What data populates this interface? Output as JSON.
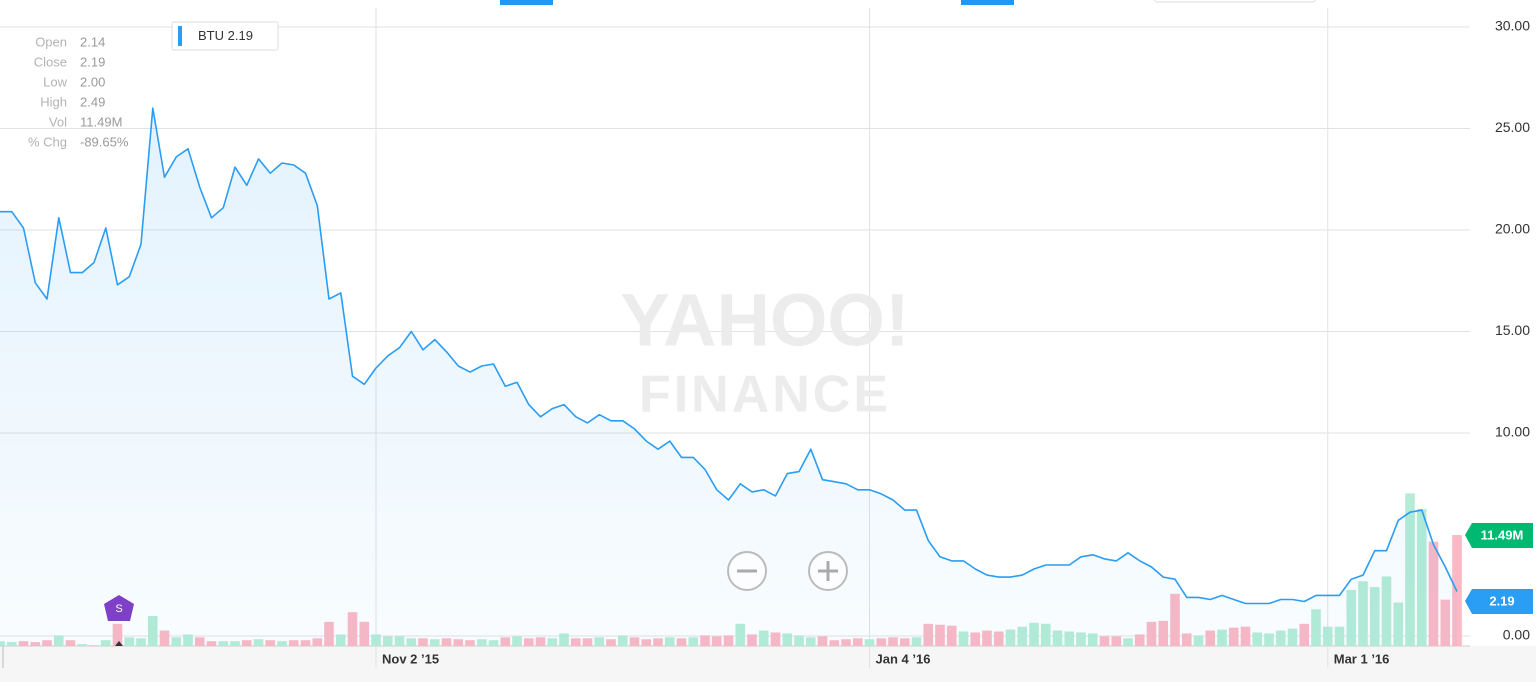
{
  "chart_data": {
    "type": "line",
    "categories": [
      null,
      null,
      null,
      null,
      null,
      null,
      null,
      null,
      null,
      null,
      null,
      null,
      null,
      null,
      null,
      null,
      null,
      null,
      null,
      null,
      null,
      null,
      null,
      null,
      null,
      null,
      null,
      null,
      null,
      null,
      null,
      null,
      "Nov 2 ’15",
      null,
      null,
      null,
      null,
      null,
      null,
      null,
      null,
      null,
      null,
      null,
      null,
      null,
      null,
      null,
      null,
      null,
      null,
      null,
      null,
      null,
      null,
      null,
      null,
      null,
      null,
      null,
      null,
      null,
      null,
      null,
      null,
      null,
      null,
      null,
      null,
      null,
      null,
      null,
      null,
      null,
      "Jan 4 ’16",
      null,
      null,
      null,
      null,
      null,
      null,
      null,
      null,
      null,
      null,
      null,
      null,
      null,
      null,
      null,
      null,
      null,
      null,
      null,
      null,
      null,
      null,
      null,
      null,
      null,
      null,
      null,
      null,
      null,
      null,
      null,
      null,
      null,
      null,
      null,
      null,
      null,
      null,
      "Mar 1 ’16",
      null,
      null,
      null,
      null,
      null,
      null,
      null,
      null,
      null,
      null,
      null
    ],
    "series": [
      {
        "name": "BTU",
        "color": "#2a9df4",
        "values": [
          20.9,
          20.9,
          20.1,
          17.4,
          16.6,
          20.6,
          17.9,
          17.9,
          18.4,
          20.1,
          17.3,
          17.7,
          19.3,
          26.0,
          22.6,
          23.6,
          24.0,
          22.1,
          20.6,
          21.1,
          23.1,
          22.2,
          23.5,
          22.8,
          23.3,
          23.2,
          22.8,
          21.2,
          16.6,
          16.9,
          12.8,
          12.4,
          13.2,
          13.8,
          14.2,
          15.0,
          14.1,
          14.6,
          14.0,
          13.3,
          13.0,
          13.3,
          13.4,
          12.3,
          12.5,
          11.4,
          10.8,
          11.2,
          11.4,
          10.8,
          10.5,
          10.9,
          10.6,
          10.6,
          10.2,
          9.6,
          9.2,
          9.6,
          8.8,
          8.8,
          8.2,
          7.2,
          6.7,
          7.5,
          7.1,
          7.2,
          6.9,
          8.0,
          8.1,
          9.2,
          7.7,
          7.6,
          7.5,
          7.2,
          7.2,
          7.0,
          6.7,
          6.2,
          6.2,
          4.7,
          3.9,
          3.7,
          3.7,
          3.3,
          3.0,
          2.9,
          2.9,
          3.0,
          3.3,
          3.5,
          3.5,
          3.5,
          3.9,
          4.0,
          3.8,
          3.7,
          4.1,
          3.7,
          3.4,
          2.9,
          2.8,
          1.9,
          1.9,
          1.8,
          2.0,
          1.8,
          1.6,
          1.6,
          1.6,
          1.8,
          1.8,
          1.7,
          2.0,
          2.0,
          2.0,
          2.8,
          3.0,
          4.2,
          4.2,
          5.7,
          6.1,
          6.2,
          4.5,
          3.4,
          2.19
        ]
      }
    ],
    "volume": {
      "up_color": "#b5ecd5",
      "down_color": "#fbb8c5",
      "values": [
        0.5,
        0.4,
        0.5,
        0.4,
        0.6,
        1.1,
        0.6,
        0.2,
        0.1,
        0.6,
        2.3,
        0.9,
        0.8,
        3.1,
        1.6,
        0.9,
        1.2,
        0.9,
        0.5,
        0.5,
        0.5,
        0.6,
        0.7,
        0.6,
        0.5,
        0.6,
        0.6,
        0.8,
        2.5,
        1.2,
        3.5,
        2.5,
        1.2,
        1.0,
        1.0,
        0.8,
        0.8,
        0.7,
        0.8,
        0.7,
        0.6,
        0.7,
        0.6,
        0.9,
        1.0,
        0.8,
        0.9,
        0.8,
        1.3,
        0.8,
        0.8,
        0.9,
        0.7,
        1.1,
        0.9,
        0.7,
        0.8,
        0.9,
        0.8,
        0.9,
        1.1,
        1.0,
        1.1,
        2.3,
        1.2,
        1.6,
        1.4,
        1.3,
        1.1,
        0.9,
        1.0,
        0.6,
        0.7,
        0.8,
        0.7,
        0.8,
        0.9,
        0.8,
        0.9,
        2.3,
        2.2,
        2.1,
        1.5,
        1.4,
        1.6,
        1.5,
        1.7,
        2.0,
        2.4,
        2.3,
        1.6,
        1.5,
        1.4,
        1.3,
        1.0,
        1.0,
        0.8,
        1.2,
        2.5,
        2.6,
        5.4,
        1.3,
        1.1,
        1.6,
        1.7,
        1.9,
        2.0,
        1.4,
        1.3,
        1.6,
        1.8,
        2.3,
        3.8,
        2.0,
        2.0,
        5.8,
        6.7,
        6.1,
        7.2,
        4.5,
        15.8,
        14.2,
        10.8,
        4.8,
        11.49
      ]
    },
    "ylim": [
      0,
      30
    ],
    "yticks": [
      {
        "value": 0,
        "label": "0.00"
      },
      {
        "value": 10,
        "label": "10.00"
      },
      {
        "value": 15,
        "label": "15.00"
      },
      {
        "value": 20,
        "label": "20.00"
      },
      {
        "value": 25,
        "label": "25.00"
      },
      {
        "value": 30,
        "label": "30.00"
      }
    ],
    "grid": true,
    "legend_value": "2.19",
    "info": [
      {
        "label": "Open",
        "value": "2.14"
      },
      {
        "label": "Close",
        "value": "2.19"
      },
      {
        "label": "Low",
        "value": "2.00"
      },
      {
        "label": "High",
        "value": "2.49"
      },
      {
        "label": "Vol",
        "value": "11.49M"
      },
      {
        "label": "% Chg",
        "value": "-89.65%"
      }
    ],
    "last_volume_label": "11.49M",
    "last_price_label": "2.19",
    "events": [
      "S"
    ],
    "watermark": [
      "YAHOO!",
      "FINANCE"
    ]
  }
}
